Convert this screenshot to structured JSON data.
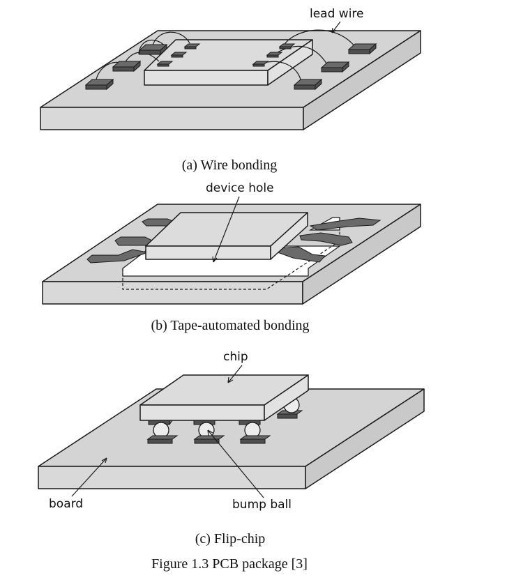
{
  "labels": {
    "lead_wire": "lead wire",
    "device_hole": "device hole",
    "chip": "chip",
    "board": "board",
    "bump_ball": "bump ball"
  },
  "captions": {
    "a": "(a) Wire bonding",
    "b": "(b) Tape-automated bonding",
    "c": "(c) Flip-chip",
    "figure": "Figure 1.3 PCB package [3]"
  }
}
